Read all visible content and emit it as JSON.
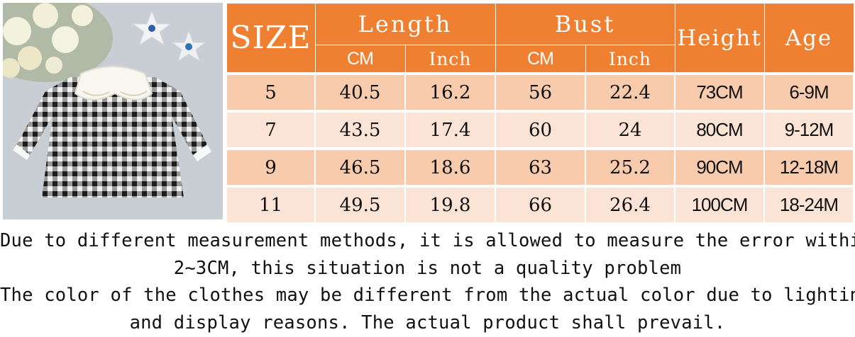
{
  "image": {
    "alt": "product photo: black and white gingham baby dress with white lace collar, white flowers and two starfish",
    "background_color": "#c8cdd4"
  },
  "table": {
    "header_color": "#ef7f31",
    "row_colors": [
      "#f8cbad",
      "#fbe4d5"
    ],
    "headers": {
      "size": "SIZE",
      "length": "Length",
      "bust": "Bust",
      "height": "Height",
      "age": "Age",
      "length_cm": "CM",
      "length_inch": "Inch",
      "bust_cm": "CM",
      "bust_inch": "Inch"
    },
    "rows": [
      {
        "size": "5",
        "length_cm": "40.5",
        "length_inch": "16.2",
        "bust_cm": "56",
        "bust_inch": "22.4",
        "height": "73CM",
        "age": "6-9M"
      },
      {
        "size": "7",
        "length_cm": "43.5",
        "length_inch": "17.4",
        "bust_cm": "60",
        "bust_inch": "24",
        "height": "80CM",
        "age": "9-12M"
      },
      {
        "size": "9",
        "length_cm": "46.5",
        "length_inch": "18.6",
        "bust_cm": "63",
        "bust_inch": "25.2",
        "height": "90CM",
        "age": "12-18M"
      },
      {
        "size": "11",
        "length_cm": "49.5",
        "length_inch": "19.8",
        "bust_cm": "66",
        "bust_inch": "26.4",
        "height": "100CM",
        "age": "18-24M"
      }
    ]
  },
  "notes": {
    "line1": "Due to different measurement methods, it is allowed to measure the error within",
    "line2": "2~3CM, this situation is not a quality problem",
    "line3": "The color of the clothes may be different from the actual color due to lighting",
    "line4": "and display reasons. The actual product shall prevail."
  }
}
